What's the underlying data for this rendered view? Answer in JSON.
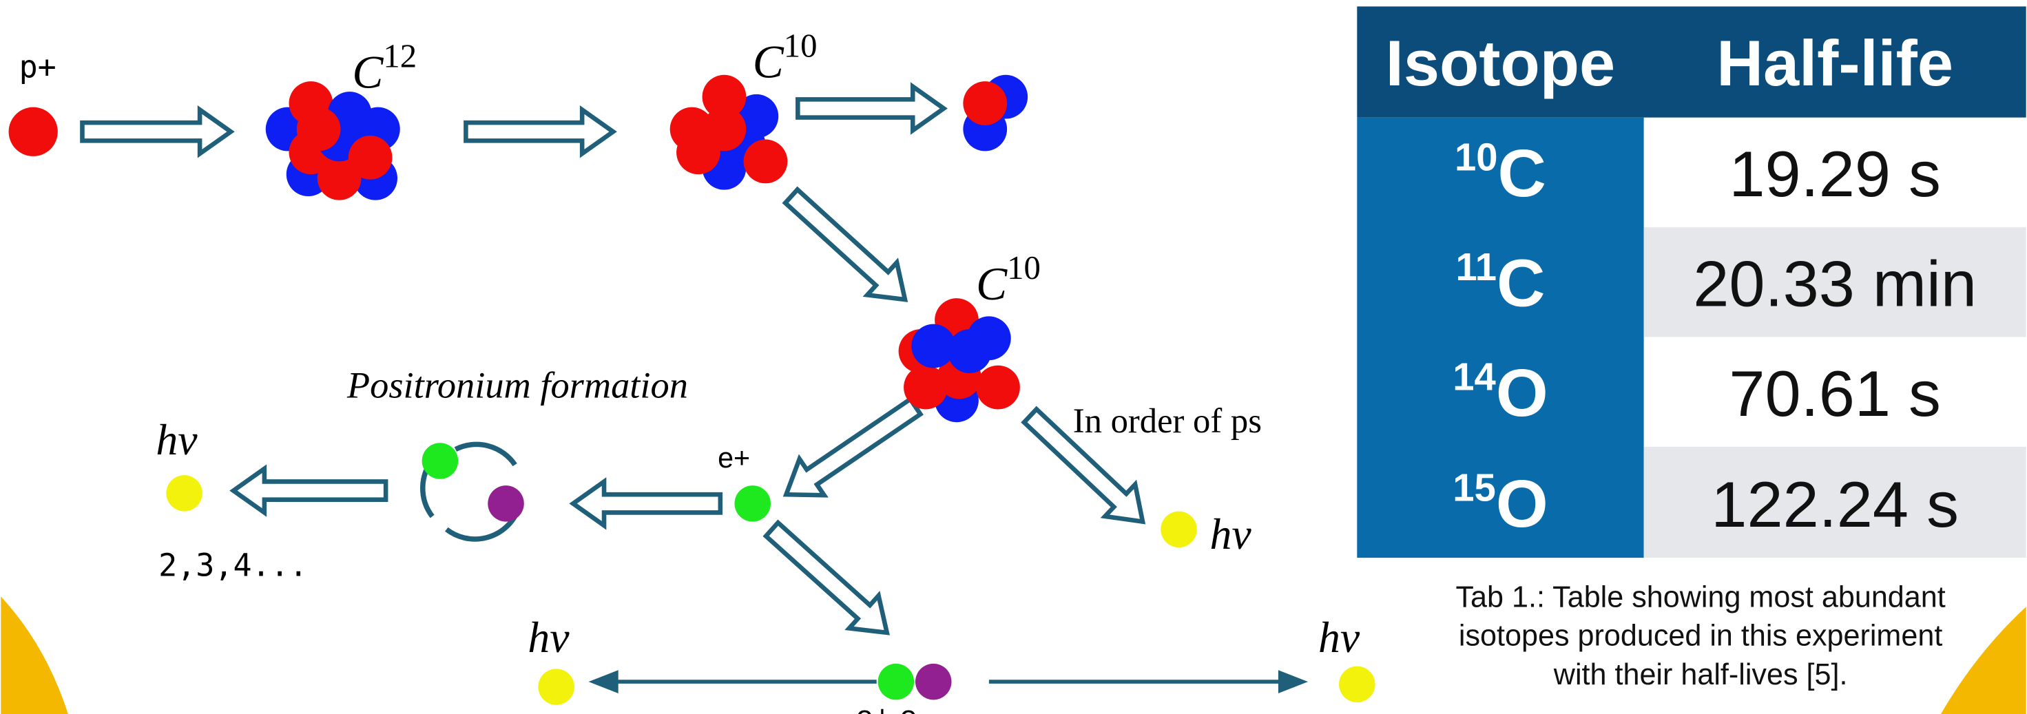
{
  "diagram": {
    "proton": "p+",
    "target": {
      "element": "C",
      "mass": "12"
    },
    "product": {
      "element": "C",
      "mass": "10"
    },
    "decaying": {
      "element": "C",
      "mass": "10"
    },
    "positronium_label": "Positronium formation",
    "timing_label": "In order of ps",
    "positron_label": "e+",
    "multi_photon_count": "2,3,4...",
    "photon_multi": "hν",
    "photon_prompt": "hν",
    "photon_left": "hν",
    "photon_right": "hν",
    "annihilation_label": "e+ e-"
  },
  "table": {
    "header": [
      "Isotope",
      "Half-life"
    ],
    "rows": [
      [
        {
          "mass": "10",
          "element": "C"
        },
        "19.29 s"
      ],
      [
        {
          "mass": "11",
          "element": "C"
        },
        "20.33 min"
      ],
      [
        {
          "mass": "14",
          "element": "O"
        },
        "70.61 s"
      ],
      [
        {
          "mass": "15",
          "element": "O"
        },
        "122.24 s"
      ]
    ],
    "caption": [
      "Tab 1.: Table showing most abundant",
      "isotopes produced in this experiment",
      "with their half-lives [5]."
    ]
  }
}
